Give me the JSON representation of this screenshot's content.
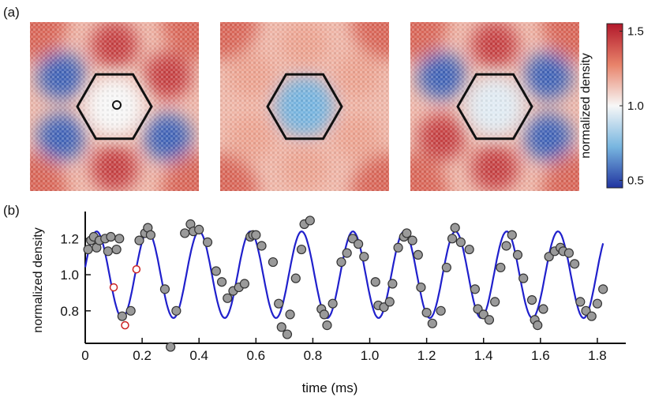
{
  "panels": {
    "a_label": "(a)",
    "b_label": "(b)"
  },
  "colorbar": {
    "label": "normalized density",
    "ticks": [
      "1.5",
      "1.0",
      "0.5"
    ],
    "tick_values": [
      1.5,
      1.0,
      0.5
    ],
    "range": [
      0.45,
      1.55
    ],
    "colors": {
      "high": "#b2182b",
      "mid": "#f7f7f7",
      "low": "#2134a0"
    }
  },
  "density_maps": [
    {
      "name": "map-1",
      "center_level": 1.0,
      "lobes": [
        1.45,
        1.45,
        0.55,
        1.45,
        0.55,
        0.55
      ],
      "marker": "open circle at center"
    },
    {
      "name": "map-2",
      "center_level": 0.72,
      "lobes": [
        1.2,
        1.2,
        1.2,
        1.2,
        1.2,
        1.2
      ],
      "marker": ""
    },
    {
      "name": "map-3",
      "center_level": 0.95,
      "lobes": [
        1.45,
        0.55,
        0.55,
        1.45,
        1.45,
        0.55
      ],
      "marker": ""
    }
  ],
  "chart_data": {
    "type": "scatter",
    "xlabel": "time (ms)",
    "ylabel": "normalized density",
    "xlim": [
      0,
      1.9
    ],
    "ylim": [
      0.62,
      1.35
    ],
    "xticks": [
      0,
      0.2,
      0.4,
      0.6,
      0.8,
      1.0,
      1.2,
      1.4,
      1.6,
      1.8
    ],
    "xtick_labels": [
      "0",
      "0.2",
      "0.4",
      "0.6",
      "0.8",
      "1.0",
      "1.2",
      "1.4",
      "1.6",
      "1.8"
    ],
    "yticks": [
      0.8,
      1.0,
      1.2
    ],
    "ytick_labels": [
      "0.8",
      "1.0",
      "1.2"
    ],
    "fit": {
      "name": "fit",
      "color": "#2020cc",
      "amplitude": 0.24,
      "offset": 1.0,
      "frequency_khz": 5.55,
      "phase_time_ms": 0.04,
      "t_start": 0.0,
      "t_end": 1.82
    },
    "series": [
      {
        "name": "data",
        "marker_color": "#9a9a9a",
        "points": [
          [
            0.01,
            1.14
          ],
          [
            0.02,
            1.19
          ],
          [
            0.03,
            1.21
          ],
          [
            0.04,
            1.15
          ],
          [
            0.05,
            1.19
          ],
          [
            0.07,
            1.2
          ],
          [
            0.08,
            1.13
          ],
          [
            0.09,
            1.21
          ],
          [
            0.11,
            1.14
          ],
          [
            0.12,
            1.2
          ],
          [
            0.13,
            0.77
          ],
          [
            0.16,
            0.8
          ],
          [
            0.19,
            1.19
          ],
          [
            0.21,
            1.23
          ],
          [
            0.22,
            1.26
          ],
          [
            0.23,
            1.22
          ],
          [
            0.28,
            0.92
          ],
          [
            0.3,
            0.6
          ],
          [
            0.32,
            0.8
          ],
          [
            0.35,
            1.23
          ],
          [
            0.37,
            1.28
          ],
          [
            0.38,
            1.24
          ],
          [
            0.4,
            1.25
          ],
          [
            0.43,
            1.18
          ],
          [
            0.46,
            1.02
          ],
          [
            0.48,
            0.96
          ],
          [
            0.5,
            0.87
          ],
          [
            0.52,
            0.91
          ],
          [
            0.54,
            0.93
          ],
          [
            0.56,
            0.95
          ],
          [
            0.58,
            1.21
          ],
          [
            0.59,
            1.22
          ],
          [
            0.6,
            1.22
          ],
          [
            0.62,
            1.16
          ],
          [
            0.66,
            1.07
          ],
          [
            0.68,
            0.84
          ],
          [
            0.69,
            0.71
          ],
          [
            0.71,
            0.67
          ],
          [
            0.72,
            0.78
          ],
          [
            0.74,
            0.98
          ],
          [
            0.76,
            1.14
          ],
          [
            0.77,
            1.28
          ],
          [
            0.79,
            1.3
          ],
          [
            0.83,
            0.81
          ],
          [
            0.84,
            0.78
          ],
          [
            0.85,
            0.72
          ],
          [
            0.87,
            0.84
          ],
          [
            0.9,
            1.07
          ],
          [
            0.92,
            1.12
          ],
          [
            0.94,
            1.2
          ],
          [
            0.96,
            1.17
          ],
          [
            0.98,
            1.1
          ],
          [
            1.02,
            0.96
          ],
          [
            1.03,
            0.83
          ],
          [
            1.05,
            0.82
          ],
          [
            1.07,
            0.85
          ],
          [
            1.08,
            0.95
          ],
          [
            1.1,
            1.15
          ],
          [
            1.12,
            1.21
          ],
          [
            1.13,
            1.23
          ],
          [
            1.15,
            1.19
          ],
          [
            1.17,
            1.11
          ],
          [
            1.18,
            0.93
          ],
          [
            1.2,
            0.79
          ],
          [
            1.22,
            0.73
          ],
          [
            1.25,
            0.8
          ],
          [
            1.27,
            1.04
          ],
          [
            1.29,
            1.2
          ],
          [
            1.3,
            1.26
          ],
          [
            1.32,
            1.18
          ],
          [
            1.35,
            1.14
          ],
          [
            1.37,
            0.92
          ],
          [
            1.38,
            0.81
          ],
          [
            1.4,
            0.78
          ],
          [
            1.42,
            0.75
          ],
          [
            1.44,
            0.85
          ],
          [
            1.46,
            1.04
          ],
          [
            1.48,
            1.16
          ],
          [
            1.5,
            1.22
          ],
          [
            1.52,
            1.11
          ],
          [
            1.54,
            0.98
          ],
          [
            1.57,
            0.86
          ],
          [
            1.58,
            0.75
          ],
          [
            1.59,
            0.72
          ],
          [
            1.61,
            0.81
          ],
          [
            1.63,
            1.1
          ],
          [
            1.65,
            1.13
          ],
          [
            1.67,
            1.15
          ],
          [
            1.68,
            1.13
          ],
          [
            1.7,
            1.12
          ],
          [
            1.72,
            1.06
          ],
          [
            1.74,
            0.85
          ],
          [
            1.76,
            0.8
          ],
          [
            1.78,
            0.77
          ],
          [
            1.8,
            0.84
          ],
          [
            1.82,
            0.92
          ]
        ]
      },
      {
        "name": "highlighted",
        "marker_color": "#cc2222",
        "points": [
          [
            0.1,
            0.93
          ],
          [
            0.14,
            0.72
          ],
          [
            0.18,
            1.03
          ]
        ]
      }
    ]
  }
}
